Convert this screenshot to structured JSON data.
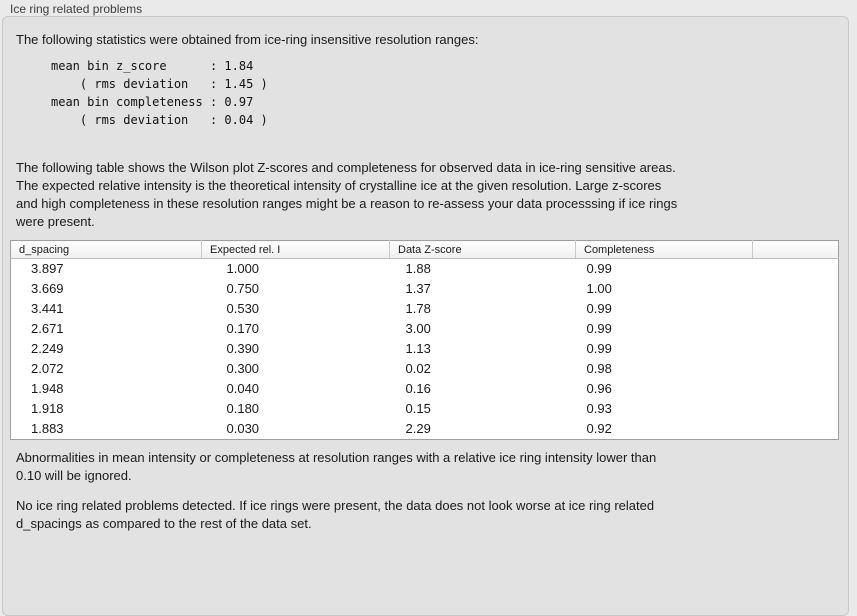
{
  "panel": {
    "title": "Ice ring related problems"
  },
  "stats": {
    "intro": "The following statistics were obtained from ice-ring insensitive resolution ranges:",
    "block": "mean bin z_score      : 1.84\n    ( rms deviation   : 1.45 )\nmean bin completeness : 0.97\n    ( rms deviation   : 0.04 )"
  },
  "table_description": "The following table shows the Wilson plot Z-scores and completeness for observed data in ice-ring sensitive areas.\nThe expected relative intensity is the theoretical intensity of crystalline ice at the given resolution. Large z-scores\nand high completeness in these resolution ranges might be a reason to re-assess your data processsing if ice rings\nwere present.",
  "table": {
    "columns": [
      "d_spacing",
      "Expected rel. I",
      "Data Z-score",
      "Completeness",
      ""
    ],
    "rows": [
      [
        "3.897",
        "1.000",
        "1.88",
        "0.99"
      ],
      [
        "3.669",
        "0.750",
        "1.37",
        "1.00"
      ],
      [
        "3.441",
        "0.530",
        "1.78",
        "0.99"
      ],
      [
        "2.671",
        "0.170",
        "3.00",
        "0.99"
      ],
      [
        "2.249",
        "0.390",
        "1.13",
        "0.99"
      ],
      [
        "2.072",
        "0.300",
        "0.02",
        "0.98"
      ],
      [
        "1.948",
        "0.040",
        "0.16",
        "0.96"
      ],
      [
        "1.918",
        "0.180",
        "0.15",
        "0.93"
      ],
      [
        "1.883",
        "0.030",
        "2.29",
        "0.92"
      ]
    ]
  },
  "notes": {
    "ignore": "Abnormalities in mean intensity or completeness at resolution ranges with a relative ice ring intensity lower than\n0.10 will be ignored.",
    "conclusion": "No ice ring related problems detected. If ice rings were present, the data does not look worse at ice ring related\nd_spacings as compared to the rest of the data set."
  },
  "colors": {
    "page_bg": "#eaeaea",
    "panel_bg": "#e2e2e2",
    "panel_border": "#c8c8c8",
    "table_bg": "#ffffff"
  }
}
